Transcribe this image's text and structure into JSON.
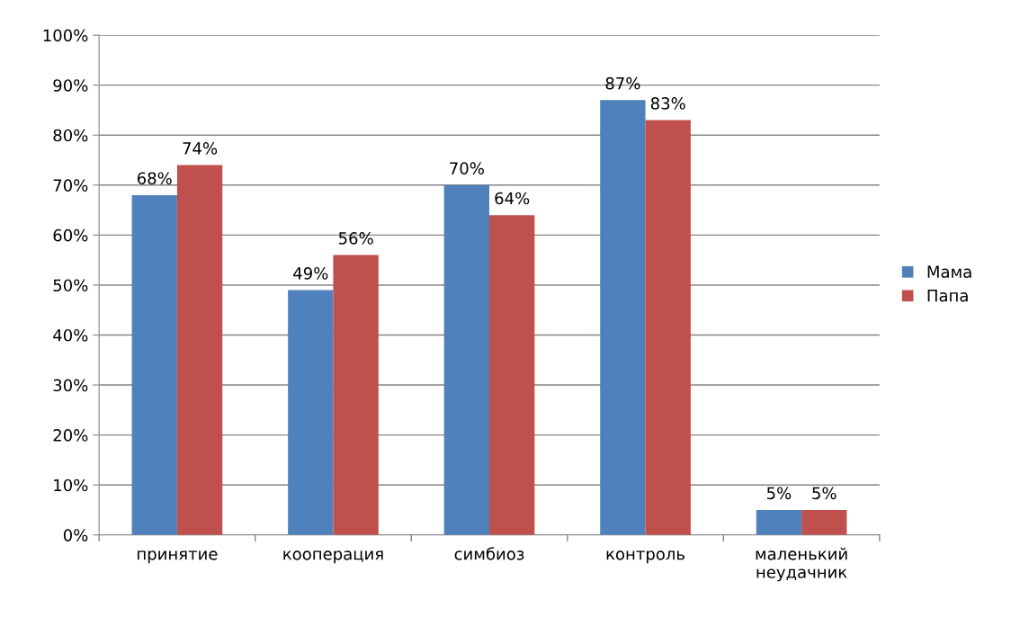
{
  "chart_data": {
    "type": "bar",
    "categories": [
      "принятие",
      "кооперация",
      "симбиоз",
      "контроль",
      "маленький\nнеудачник"
    ],
    "series": [
      {
        "name": "Мама",
        "color": "#4f81bd",
        "values": [
          68,
          49,
          70,
          87,
          5
        ],
        "value_labels": [
          "68%",
          "49%",
          "70%",
          "87%",
          "5%"
        ]
      },
      {
        "name": "Папа",
        "color": "#c0504d",
        "values": [
          74,
          56,
          64,
          83,
          5
        ],
        "value_labels": [
          "74%",
          "56%",
          "64%",
          "83%",
          "5%"
        ]
      }
    ],
    "ylim": [
      0,
      100
    ],
    "yticks": [
      {
        "value": 0,
        "label": "0%"
      },
      {
        "value": 10,
        "label": "10%"
      },
      {
        "value": 20,
        "label": "20%"
      },
      {
        "value": 30,
        "label": "30%"
      },
      {
        "value": 40,
        "label": "40%"
      },
      {
        "value": 50,
        "label": "50%"
      },
      {
        "value": 60,
        "label": "60%"
      },
      {
        "value": 70,
        "label": "70%"
      },
      {
        "value": 80,
        "label": "80%"
      },
      {
        "value": 90,
        "label": "90%"
      },
      {
        "value": 100,
        "label": "100%"
      }
    ],
    "grid": "y",
    "legend": "right"
  }
}
